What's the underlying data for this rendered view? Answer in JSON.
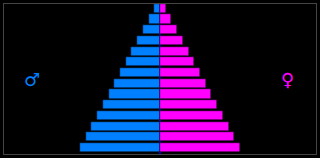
{
  "chart_data": {
    "type": "bar",
    "orientation": "horizontal",
    "categories": [
      null,
      null,
      null,
      null,
      null,
      null,
      null,
      null,
      null,
      null,
      null,
      null,
      null,
      null
    ],
    "series": [
      {
        "color": "#0080FF",
        "values": [
          -14,
          -13,
          -12,
          -11,
          -10,
          -9,
          -8,
          -7,
          -6,
          -5,
          -4,
          -3,
          -2,
          -1
        ]
      },
      {
        "color": "#FF00FF",
        "values": [
          14,
          13,
          12,
          11,
          10,
          9,
          8,
          7,
          6,
          5,
          4,
          3,
          2,
          1
        ]
      }
    ],
    "annotations": [
      {
        "text": "♂",
        "color": "#0080FF"
      },
      {
        "text": "♀",
        "color": "#FF00FF"
      }
    ],
    "xlim": [
      -27.3,
      27.3
    ],
    "ylim": [
      -0.6,
      13.4
    ],
    "grid": false,
    "tick_labels": false
  }
}
